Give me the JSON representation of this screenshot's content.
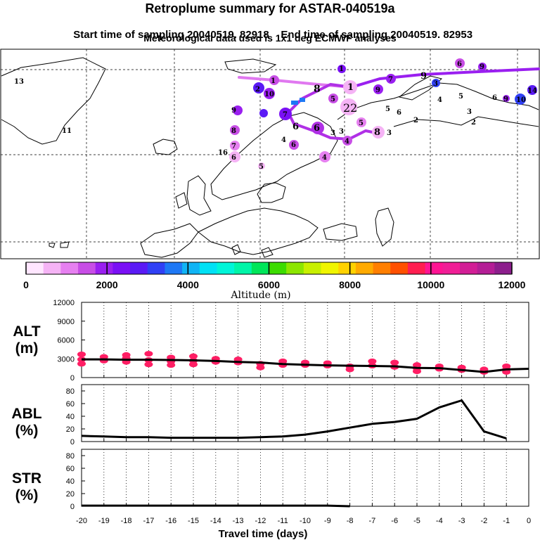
{
  "header": {
    "title": "Retroplume summary for ASTAR-040519a",
    "start_label": "Start time of sampling 20040519. 82918",
    "end_label": "End time of sampling 20040519. 82953",
    "met_label": "Meteorological data used is 1x1 deg ECMWF analyses"
  },
  "colorbar": {
    "title": "Altitude (m)",
    "tick_labels": [
      "0",
      "2000",
      "4000",
      "6000",
      "8000",
      "10000",
      "12000"
    ],
    "colors": [
      "#ffe6ff",
      "#f5b3f5",
      "#e680f0",
      "#c84ee6",
      "#9a1ff0",
      "#7a10f5",
      "#5a1af5",
      "#3040f5",
      "#1e78f5",
      "#10b4f5",
      "#00e1f5",
      "#00f5d8",
      "#00f5a8",
      "#00e65a",
      "#3cdc00",
      "#8ce600",
      "#c8ef00",
      "#f0f500",
      "#ffd200",
      "#ffaa00",
      "#ff7f00",
      "#ff5000",
      "#ff1e50",
      "#ff1493",
      "#f01e96",
      "#d21e96",
      "#b41e96",
      "#8c1e8c"
    ]
  },
  "map": {
    "labels": [
      "1",
      "2",
      "3",
      "4",
      "5",
      "6",
      "7",
      "8",
      "9",
      "10",
      "11",
      "13",
      "14",
      "16",
      "22"
    ]
  },
  "chart_data": [
    {
      "type": "line",
      "name": "ALT",
      "ylabel": "ALT\n(m)",
      "ylabel_lines": [
        "ALT",
        "(m)"
      ],
      "ylim": [
        0,
        12000
      ],
      "yticks": [
        0,
        3000,
        6000,
        9000,
        12000
      ],
      "ytick_labels": [
        "0",
        "3000",
        "6000",
        "9000",
        "12000"
      ],
      "x": [
        -20,
        -19,
        -18,
        -17,
        -16,
        -15,
        -14,
        -13,
        -12,
        -11,
        -10,
        -9,
        -8,
        -7,
        -6,
        -5,
        -4,
        -3,
        -2,
        -1,
        0
      ],
      "values": [
        2900,
        2900,
        2850,
        2850,
        2800,
        2750,
        2650,
        2500,
        2400,
        2150,
        2050,
        1950,
        1900,
        1850,
        1800,
        1550,
        1500,
        1200,
        900,
        1300,
        1400
      ],
      "scatter_color": "#ff1e64",
      "scatter": [
        {
          "x": -20,
          "y": 2900
        },
        {
          "x": -20,
          "y": 3700
        },
        {
          "x": -20,
          "y": 2200
        },
        {
          "x": -19,
          "y": 2700
        },
        {
          "x": -19,
          "y": 3300
        },
        {
          "x": -18,
          "y": 2500
        },
        {
          "x": -18,
          "y": 3100
        },
        {
          "x": -18,
          "y": 3600
        },
        {
          "x": -17,
          "y": 2800
        },
        {
          "x": -17,
          "y": 3800
        },
        {
          "x": -17,
          "y": 2100
        },
        {
          "x": -16,
          "y": 2600
        },
        {
          "x": -16,
          "y": 3200
        },
        {
          "x": -16,
          "y": 2000
        },
        {
          "x": -15,
          "y": 2700
        },
        {
          "x": -15,
          "y": 3400
        },
        {
          "x": -15,
          "y": 2100
        },
        {
          "x": -14,
          "y": 2500
        },
        {
          "x": -14,
          "y": 3000
        },
        {
          "x": -13,
          "y": 2400
        },
        {
          "x": -13,
          "y": 2900
        },
        {
          "x": -12,
          "y": 2200
        },
        {
          "x": -12,
          "y": 1600
        },
        {
          "x": -11,
          "y": 2000
        },
        {
          "x": -11,
          "y": 2600
        },
        {
          "x": -10,
          "y": 2000
        },
        {
          "x": -10,
          "y": 2400
        },
        {
          "x": -9,
          "y": 1900
        },
        {
          "x": -9,
          "y": 2300
        },
        {
          "x": -8,
          "y": 1800
        },
        {
          "x": -8,
          "y": 1300
        },
        {
          "x": -7,
          "y": 1900
        },
        {
          "x": -7,
          "y": 2600
        },
        {
          "x": -6,
          "y": 1700
        },
        {
          "x": -6,
          "y": 2400
        },
        {
          "x": -5,
          "y": 1500
        },
        {
          "x": -5,
          "y": 2000
        },
        {
          "x": -5,
          "y": 1000
        },
        {
          "x": -4,
          "y": 1400
        },
        {
          "x": -4,
          "y": 1800
        },
        {
          "x": -3,
          "y": 1200
        },
        {
          "x": -3,
          "y": 1600
        },
        {
          "x": -2,
          "y": 900
        },
        {
          "x": -2,
          "y": 1300
        },
        {
          "x": -1,
          "y": 1300
        },
        {
          "x": -1,
          "y": 1800
        },
        {
          "x": -1,
          "y": 900
        }
      ]
    },
    {
      "type": "line",
      "name": "ABL",
      "ylabel": "ABL\n(%)",
      "ylabel_lines": [
        "ABL",
        "(%)"
      ],
      "ylim": [
        0,
        90
      ],
      "yticks": [
        0,
        20,
        40,
        60,
        80
      ],
      "ytick_labels": [
        "0",
        "20",
        "40",
        "60",
        "80"
      ],
      "x": [
        -20,
        -19,
        -18,
        -17,
        -16,
        -15,
        -14,
        -13,
        -12,
        -11,
        -10,
        -9,
        -8,
        -7,
        -6,
        -5,
        -4,
        -3,
        -2,
        -1
      ],
      "values": [
        9,
        8,
        7,
        7,
        6,
        6,
        6,
        6,
        7,
        8,
        11,
        16,
        22,
        28,
        31,
        36,
        54,
        65,
        16,
        5
      ]
    },
    {
      "type": "line",
      "name": "STR",
      "ylabel": "STR\n(%)",
      "ylabel_lines": [
        "STR",
        "(%)"
      ],
      "ylim": [
        0,
        90
      ],
      "yticks": [
        0,
        20,
        40,
        60,
        80
      ],
      "ytick_labels": [
        "0",
        "20",
        "40",
        "60",
        "80"
      ],
      "x": [
        -20,
        -19,
        -18,
        -17,
        -16,
        -15,
        -14,
        -13,
        -12,
        -11,
        -10,
        -9,
        -8
      ],
      "values": [
        1,
        1,
        1,
        1,
        1,
        1,
        1,
        1,
        1,
        1,
        1,
        1,
        0
      ],
      "xlabel": "Travel time (days)",
      "xticks": [
        -20,
        -19,
        -18,
        -17,
        -16,
        -15,
        -14,
        -13,
        -12,
        -11,
        -10,
        -9,
        -8,
        -7,
        -6,
        -5,
        -4,
        -3,
        -2,
        -1,
        0
      ],
      "xtick_labels": [
        "-20",
        "-19",
        "-18",
        "-17",
        "-16",
        "-15",
        "-14",
        "-13",
        "-12",
        "-11",
        "-10",
        "-9",
        "-8",
        "-7",
        "-6",
        "-5",
        "-4",
        "-3",
        "-2",
        "-1",
        "0"
      ]
    }
  ]
}
